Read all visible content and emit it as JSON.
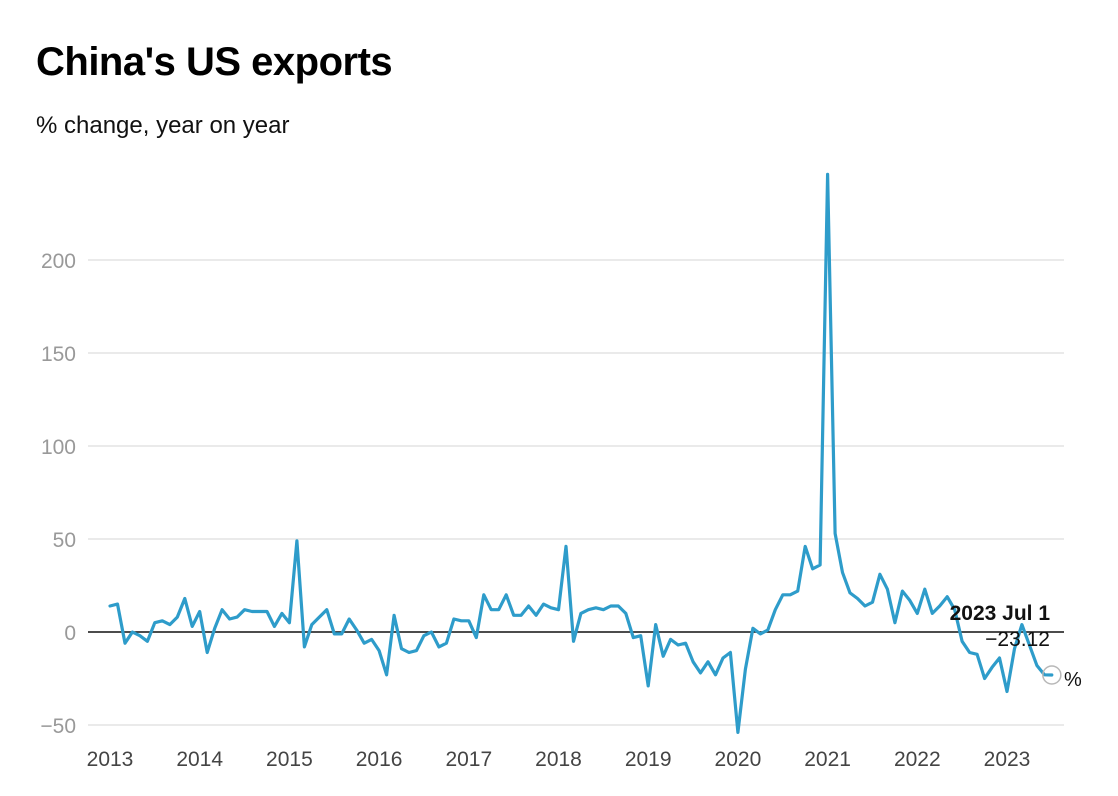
{
  "chart_data": {
    "type": "line",
    "title": "China's US exports",
    "subtitle": "% change, year on year",
    "xlabel": "",
    "ylabel": "",
    "x_start": "2013-01",
    "x_ticks": [
      "2013",
      "2014",
      "2015",
      "2016",
      "2017",
      "2018",
      "2019",
      "2020",
      "2021",
      "2022",
      "2023"
    ],
    "y_ticks": [
      -50,
      0,
      50,
      100,
      150,
      200
    ],
    "ylim": [
      -55,
      245
    ],
    "grid": true,
    "series": [
      {
        "color": "#2e9cca",
        "values": [
          14,
          15,
          -6,
          0,
          -2,
          -5,
          5,
          6,
          4,
          8,
          18,
          3,
          11,
          -11,
          2,
          12,
          7,
          8,
          12,
          11,
          11,
          11,
          3,
          10,
          5,
          49,
          -8,
          4,
          8,
          12,
          -1,
          -1,
          7,
          1,
          -6,
          -4,
          -10,
          -23,
          9,
          -9,
          -11,
          -10,
          -2,
          0,
          -8,
          -6,
          7,
          6,
          6,
          -3,
          20,
          12,
          12,
          20,
          9,
          9,
          14,
          9,
          15,
          13,
          12,
          46,
          -5,
          10,
          12,
          13,
          12,
          14,
          14,
          10,
          -3,
          -2,
          -29,
          4,
          -13,
          -4,
          -7,
          -6,
          -16,
          -22,
          -16,
          -23,
          -14,
          -11,
          -54,
          -20,
          2,
          -1,
          1,
          12,
          20,
          20,
          22,
          46,
          34,
          36,
          246,
          53,
          32,
          21,
          18,
          14,
          16,
          31,
          23,
          5,
          22,
          17,
          10,
          23,
          10,
          14,
          19,
          12,
          -5,
          -11,
          -12,
          -25,
          -19,
          -14,
          -32,
          -9,
          4,
          -7,
          -18,
          -23,
          -23.12
        ]
      }
    ],
    "annotation": {
      "date_label": "2023 Jul 1",
      "value_label": "−23.12",
      "unit": "%"
    }
  }
}
